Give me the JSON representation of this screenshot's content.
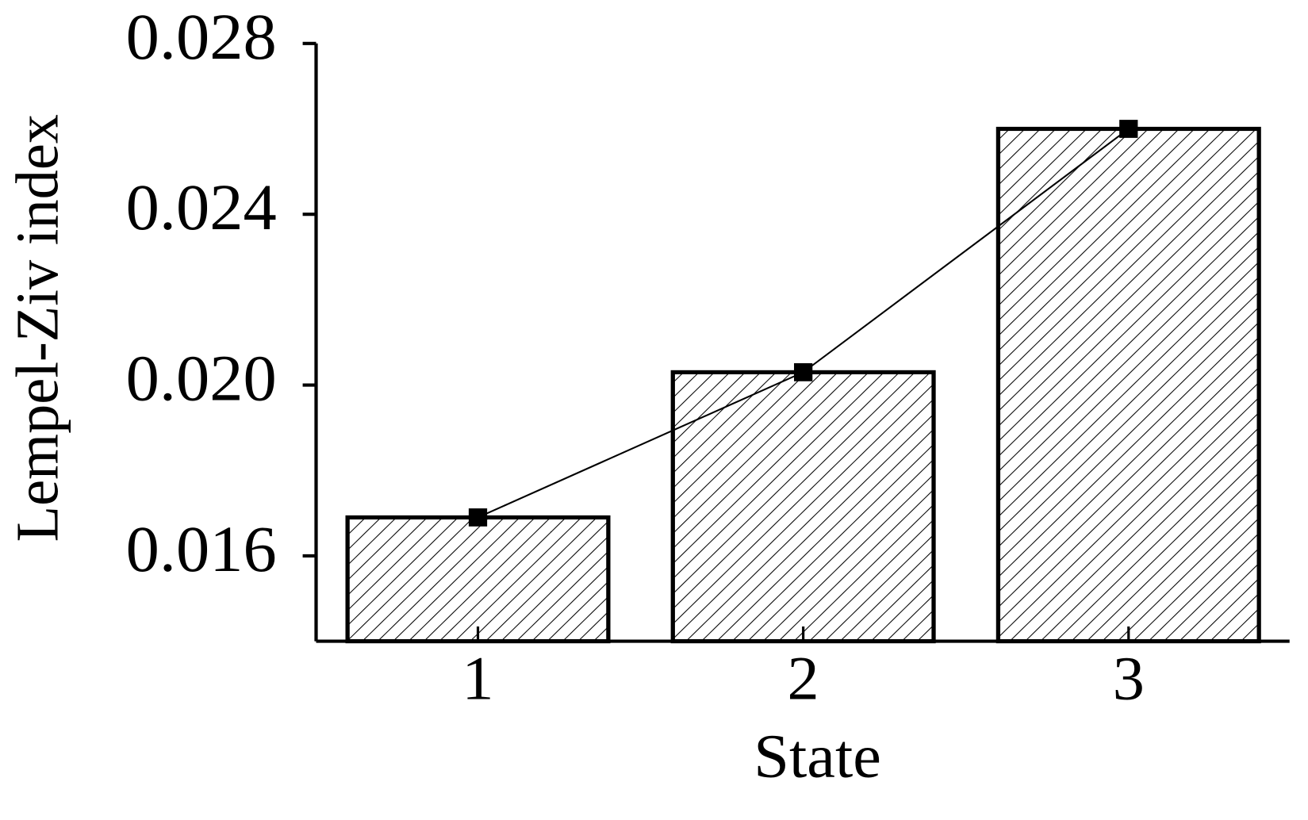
{
  "chart_data": {
    "type": "bar",
    "x_label": "State",
    "y_label": "Lempel-Ziv index",
    "categories": [
      "1",
      "2",
      "3"
    ],
    "values": [
      0.0169,
      0.0203,
      0.026
    ],
    "color": "#000000",
    "hatch": true,
    "line_overlay": true,
    "ylim": [
      0.014,
      0.028
    ],
    "yticks": [
      {
        "value": 0.016,
        "label": "0.016"
      },
      {
        "value": 0.02,
        "label": "0.020"
      },
      {
        "value": 0.024,
        "label": "0.024"
      },
      {
        "value": 0.028,
        "label": "0.028"
      }
    ]
  }
}
